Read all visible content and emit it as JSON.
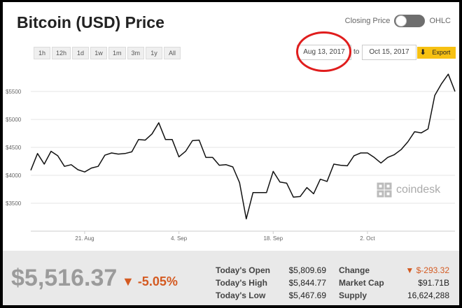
{
  "header": {
    "title": "Bitcoin (USD) Price",
    "toggle_left": "Closing Price",
    "toggle_right": "OHLC"
  },
  "ranges": [
    "1h",
    "12h",
    "1d",
    "1w",
    "1m",
    "3m",
    "1y",
    "All"
  ],
  "dates": {
    "from": "Aug 13, 2017",
    "to_label": "to",
    "to": "Oct 15, 2017"
  },
  "export_label": "Export",
  "watermark": "coindesk",
  "colors": {
    "line": "#111111",
    "accent": "#d45a21",
    "export": "#f7c112",
    "highlight_circle": "#e01d1d"
  },
  "chart_data": {
    "type": "line",
    "title": "",
    "xlabel": "",
    "ylabel": "",
    "ylim": [
      3000,
      6000
    ],
    "grid": true,
    "ytick_values": [
      3500,
      4000,
      4500,
      5000,
      5500
    ],
    "ytick_labels": [
      "$3500",
      "$4000",
      "$4500",
      "$5000",
      "$5500"
    ],
    "xtick_labels": [
      "21. Aug",
      "4. Sep",
      "18. Sep",
      "2. Oct"
    ],
    "xtick_dates": [
      "2017-08-21",
      "2017-09-04",
      "2017-09-18",
      "2017-10-02"
    ],
    "series": [
      {
        "x": [
          "2017-08-13",
          "2017-08-14",
          "2017-08-15",
          "2017-08-16",
          "2017-08-17",
          "2017-08-18",
          "2017-08-19",
          "2017-08-20",
          "2017-08-21",
          "2017-08-22",
          "2017-08-23",
          "2017-08-24",
          "2017-08-25",
          "2017-08-26",
          "2017-08-27",
          "2017-08-28",
          "2017-08-29",
          "2017-08-30",
          "2017-08-31",
          "2017-09-01",
          "2017-09-02",
          "2017-09-03",
          "2017-09-04",
          "2017-09-05",
          "2017-09-06",
          "2017-09-07",
          "2017-09-08",
          "2017-09-09",
          "2017-09-10",
          "2017-09-11",
          "2017-09-12",
          "2017-09-13",
          "2017-09-14",
          "2017-09-15",
          "2017-09-16",
          "2017-09-17",
          "2017-09-18",
          "2017-09-19",
          "2017-09-20",
          "2017-09-21",
          "2017-09-22",
          "2017-09-23",
          "2017-09-24",
          "2017-09-25",
          "2017-09-26",
          "2017-09-27",
          "2017-09-28",
          "2017-09-29",
          "2017-09-30",
          "2017-10-01",
          "2017-10-02",
          "2017-10-03",
          "2017-10-04",
          "2017-10-05",
          "2017-10-06",
          "2017-10-07",
          "2017-10-08",
          "2017-10-09",
          "2017-10-10",
          "2017-10-11",
          "2017-10-12",
          "2017-10-13",
          "2017-10-14",
          "2017-10-15"
        ],
        "y": [
          4090,
          4390,
          4200,
          4430,
          4350,
          4160,
          4190,
          4100,
          4060,
          4130,
          4160,
          4360,
          4400,
          4380,
          4390,
          4420,
          4640,
          4630,
          4740,
          4940,
          4640,
          4640,
          4330,
          4430,
          4620,
          4630,
          4320,
          4320,
          4180,
          4190,
          4150,
          3870,
          3220,
          3690,
          3690,
          3690,
          4070,
          3880,
          3860,
          3610,
          3620,
          3780,
          3670,
          3930,
          3890,
          4200,
          4180,
          4170,
          4350,
          4400,
          4400,
          4320,
          4220,
          4320,
          4370,
          4460,
          4600,
          4780,
          4760,
          4830,
          5430,
          5640,
          5810,
          5500
        ]
      }
    ]
  },
  "stats": {
    "price": "$5,516.37",
    "pct_change": "▼ -5.05%",
    "today_open_label": "Today's Open",
    "today_open": "$5,809.69",
    "today_high_label": "Today's High",
    "today_high": "$5,844.77",
    "today_low_label": "Today's Low",
    "today_low": "$5,467.69",
    "change_label": "Change",
    "change": "▼ $-293.32",
    "market_cap_label": "Market Cap",
    "market_cap": "$91.71B",
    "supply_label": "Supply",
    "supply": "16,624,288"
  }
}
